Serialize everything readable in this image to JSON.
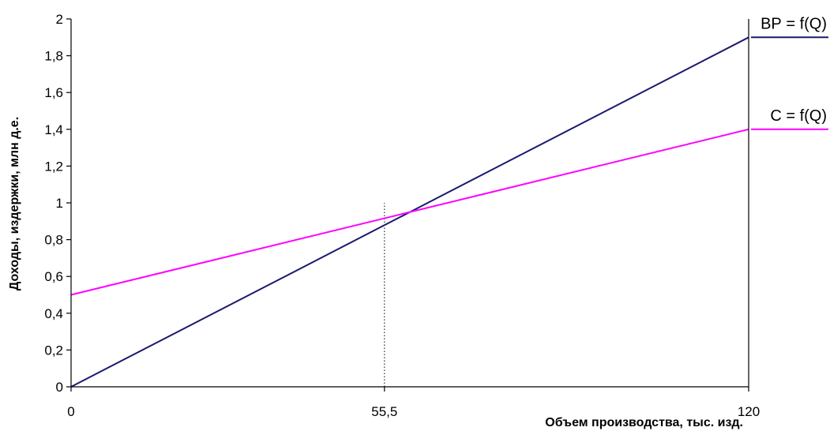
{
  "chart_data": {
    "type": "line",
    "title": "",
    "xlabel": "Объем производства, тыс. изд.",
    "ylabel": "Доходы, издержки, млн д.е.",
    "xlim": [
      0,
      120
    ],
    "ylim": [
      0,
      2
    ],
    "x_ticks": [
      {
        "value": 0,
        "label": "0"
      },
      {
        "value": 55.5,
        "label": "55,5"
      },
      {
        "value": 120,
        "label": "120"
      }
    ],
    "y_ticks": [
      {
        "value": 0,
        "label": "0"
      },
      {
        "value": 0.2,
        "label": "0,2"
      },
      {
        "value": 0.4,
        "label": "0,4"
      },
      {
        "value": 0.6,
        "label": "0,6"
      },
      {
        "value": 0.8,
        "label": "0,8"
      },
      {
        "value": 1,
        "label": "1"
      },
      {
        "value": 1.2,
        "label": "1,2"
      },
      {
        "value": 1.4,
        "label": "1,4"
      },
      {
        "value": 1.6,
        "label": "1,6"
      },
      {
        "value": 1.8,
        "label": "1,8"
      },
      {
        "value": 2,
        "label": "2"
      }
    ],
    "grid": false,
    "series": [
      {
        "name": "ВР = f(Q)",
        "color": "#1a1a6e",
        "x": [
          0,
          120
        ],
        "y": [
          0,
          1.9
        ]
      },
      {
        "name": "C = f(Q)",
        "color": "#ff00ff",
        "x": [
          0,
          120
        ],
        "y": [
          0.5,
          1.4
        ]
      }
    ],
    "annotations": [
      {
        "type": "vertical-dotted-line",
        "x": 55.5,
        "y_from": 0,
        "y_to": 1.0
      }
    ]
  }
}
